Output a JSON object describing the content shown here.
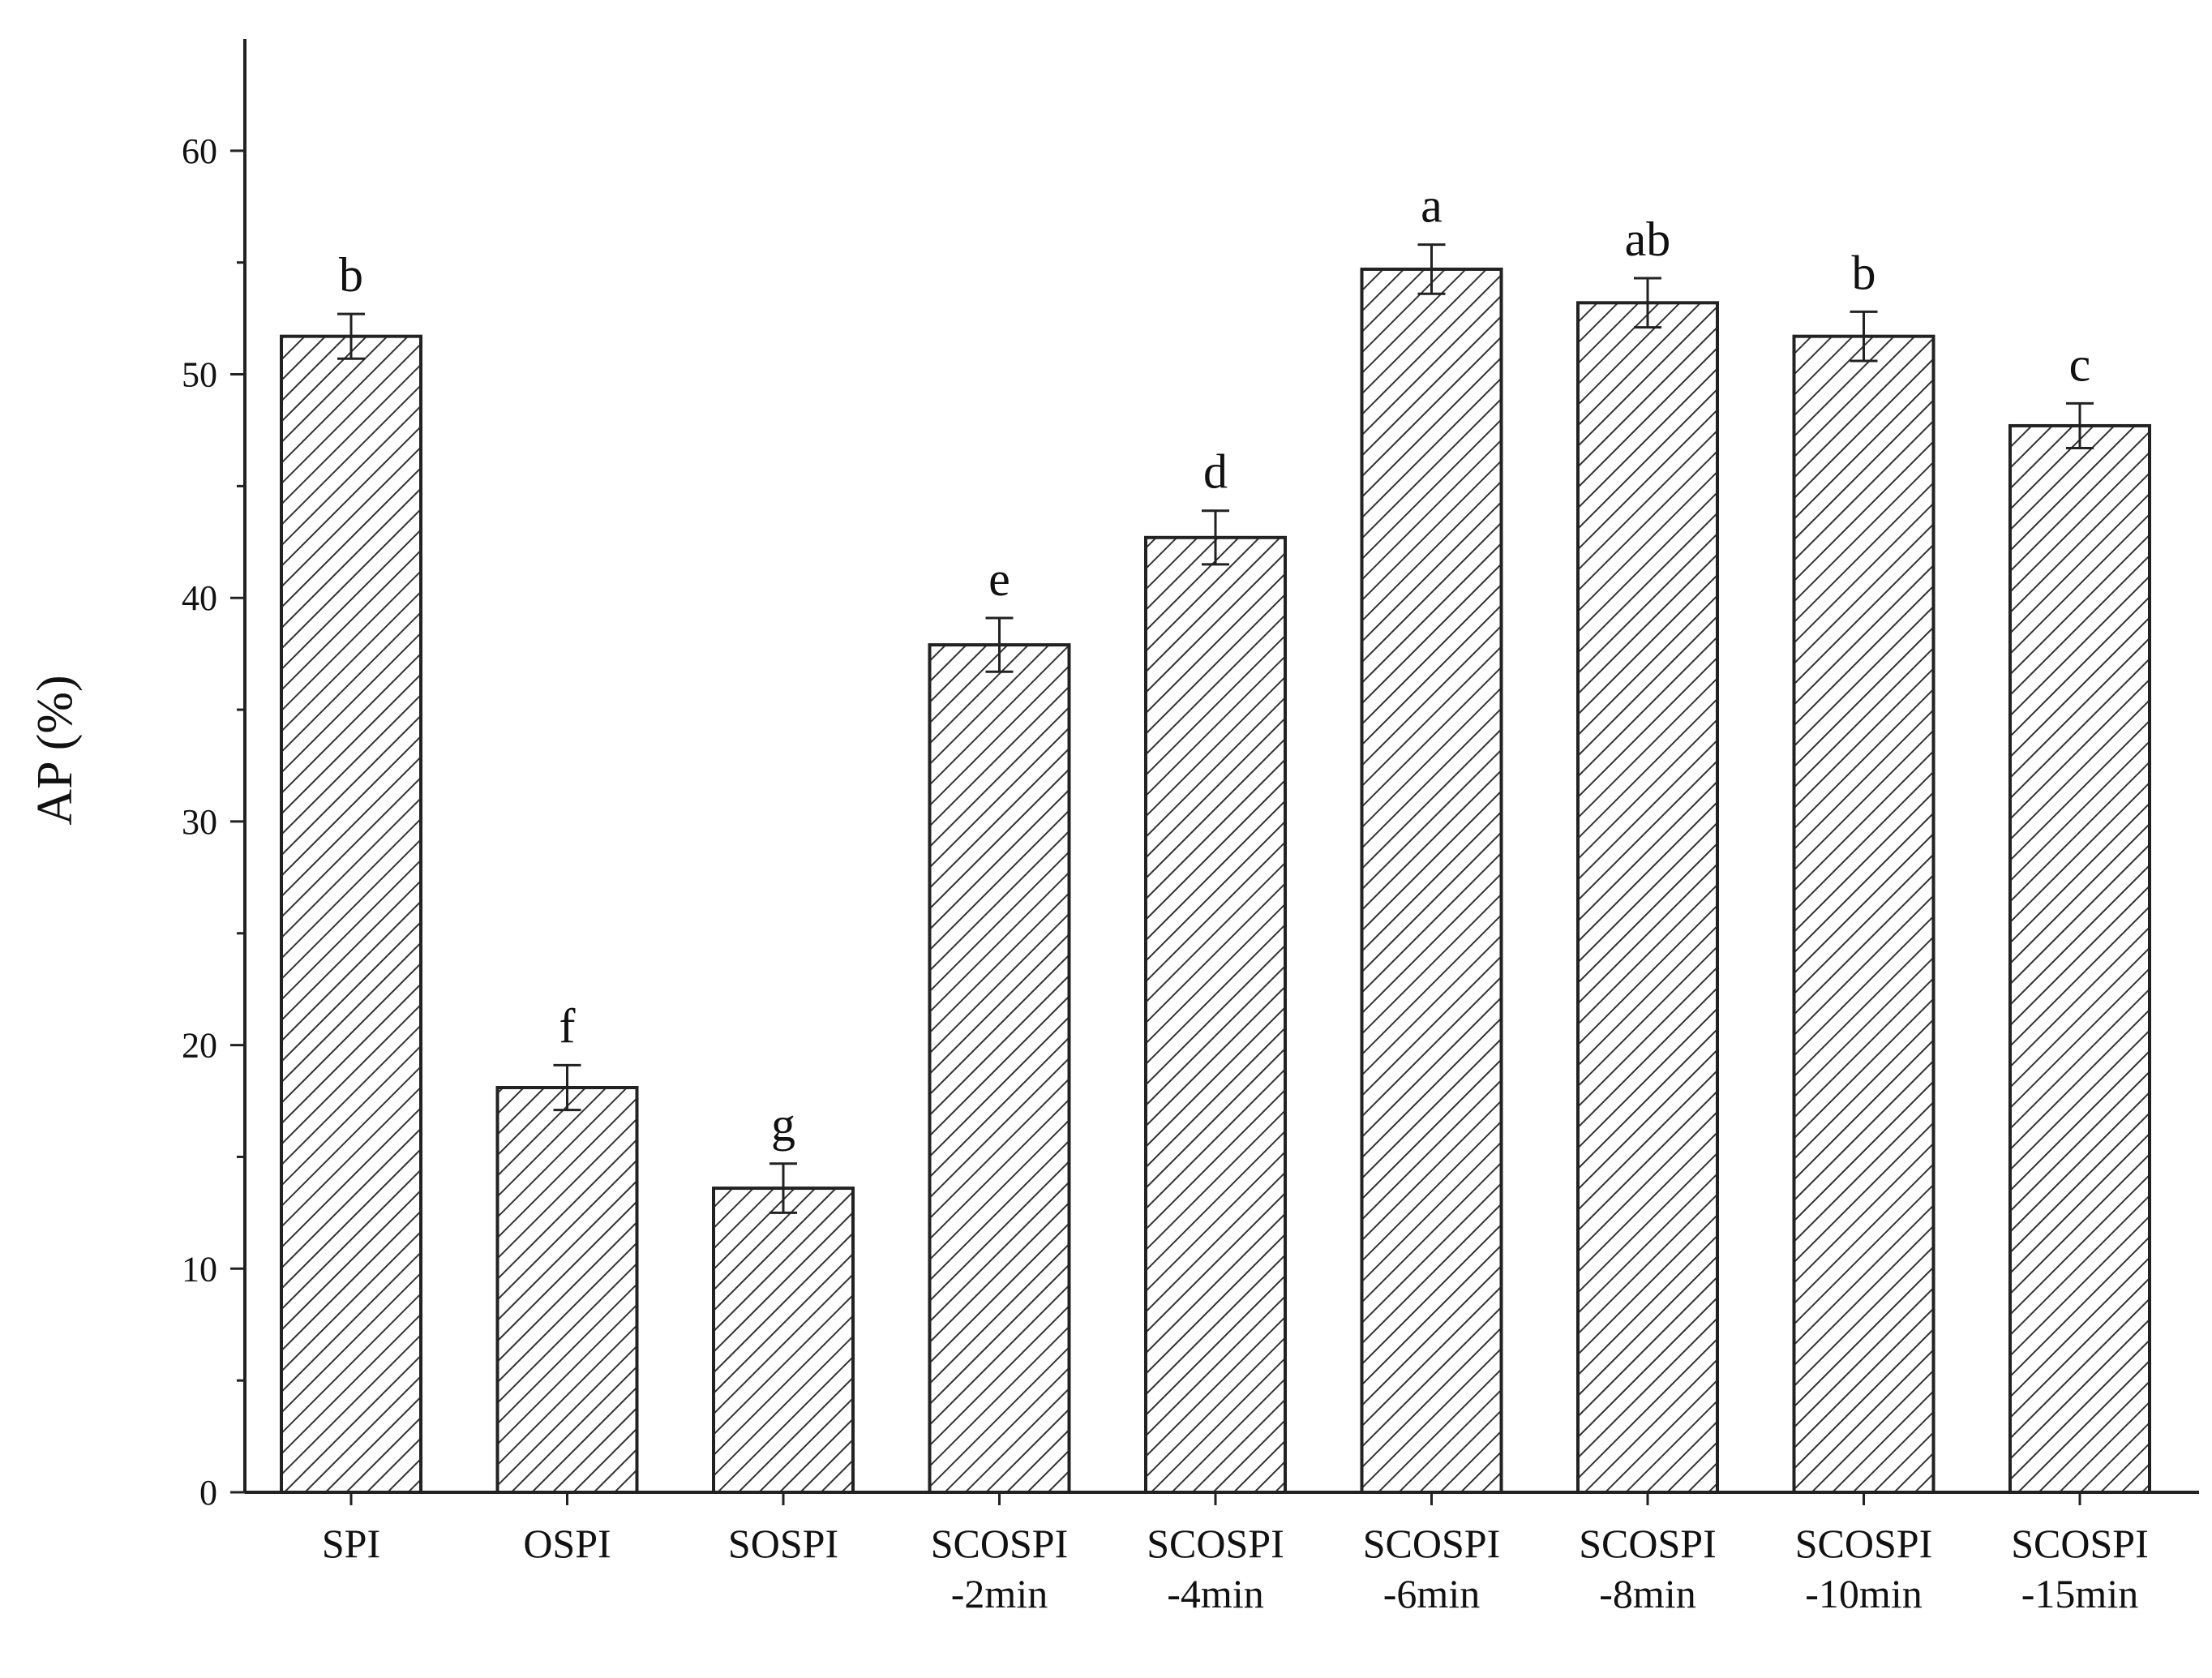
{
  "chart_data": {
    "type": "bar",
    "ylabel": "AP (%)",
    "xlabel": "",
    "ylim": [
      0,
      65
    ],
    "yticks": [
      0,
      10,
      20,
      30,
      40,
      50,
      60
    ],
    "grid": false,
    "pattern": "diagonal-hatch",
    "bar_fill": "#ffffff",
    "bar_stroke": "#222222",
    "categories": [
      [
        "SPI"
      ],
      [
        "OSPI"
      ],
      [
        "SOSPI"
      ],
      [
        "SCOSPI",
        "-2min"
      ],
      [
        "SCOSPI",
        "-4min"
      ],
      [
        "SCOSPI",
        "-6min"
      ],
      [
        "SCOSPI",
        "-8min"
      ],
      [
        "SCOSPI",
        "-10min"
      ],
      [
        "SCOSPI",
        "-15min"
      ]
    ],
    "values": [
      51.7,
      18.1,
      13.6,
      37.9,
      42.7,
      54.7,
      53.2,
      51.7,
      47.7
    ],
    "errors": [
      1.0,
      1.0,
      1.1,
      1.2,
      1.2,
      1.1,
      1.1,
      1.1,
      1.0
    ],
    "significance": [
      "b",
      "f",
      "g",
      "e",
      "d",
      "a",
      "ab",
      "b",
      "c"
    ]
  }
}
